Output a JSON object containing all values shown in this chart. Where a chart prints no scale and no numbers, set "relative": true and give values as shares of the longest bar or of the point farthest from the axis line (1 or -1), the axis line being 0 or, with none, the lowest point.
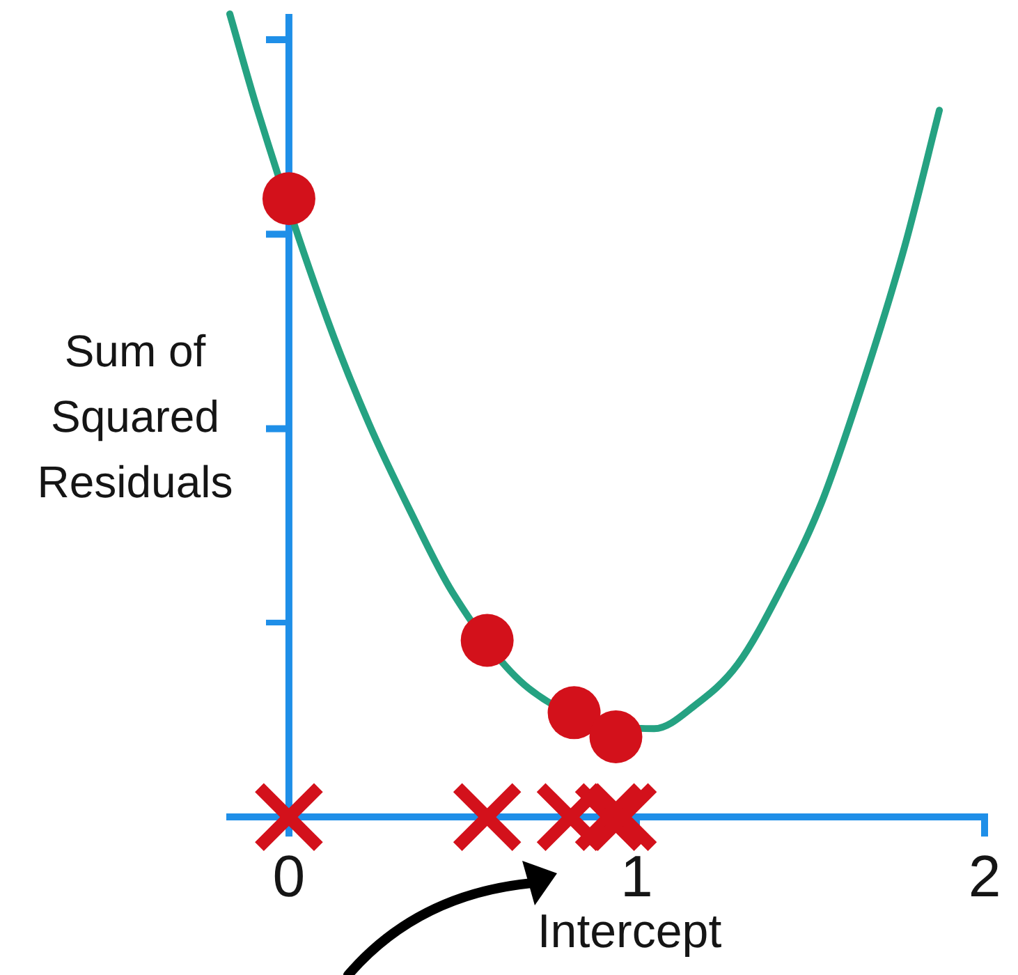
{
  "chart_data": {
    "type": "line",
    "xlabel": "Intercept",
    "ylabel": "Sum of Squared Residuals",
    "relative": true,
    "xlim": [
      -0.17,
      2
    ],
    "xticks": [
      0,
      1,
      2
    ],
    "grid": false,
    "legend": false,
    "ref_lines": [
      {
        "axis": "x",
        "value": 0,
        "color": "#1f8fe8"
      }
    ],
    "series": [
      {
        "color": "#25a282",
        "marker": "none",
        "x": [
          -0.17,
          -0.09,
          0.11,
          0.23,
          0.35,
          0.47,
          0.69,
          1.05,
          1.17,
          1.29,
          1.41,
          1.53,
          1.65,
          1.77,
          1.87
        ],
        "values": [
          1.0,
          0.88,
          0.62,
          0.49,
          0.38,
          0.28,
          0.16,
          0.11,
          0.14,
          0.19,
          0.28,
          0.39,
          0.54,
          0.71,
          0.88
        ]
      },
      {
        "type": "scatter",
        "color": "#d3111b",
        "marker": "circle",
        "x": [
          0,
          0.57,
          0.82,
          0.94
        ],
        "values": [
          0.77,
          0.22,
          0.13,
          0.1
        ]
      },
      {
        "type": "scatter",
        "color": "#d3111b",
        "marker": "cross",
        "x": [
          0,
          0.57,
          0.81,
          0.92,
          0.96
        ],
        "values": [
          0,
          0,
          0,
          0,
          0
        ]
      }
    ]
  }
}
